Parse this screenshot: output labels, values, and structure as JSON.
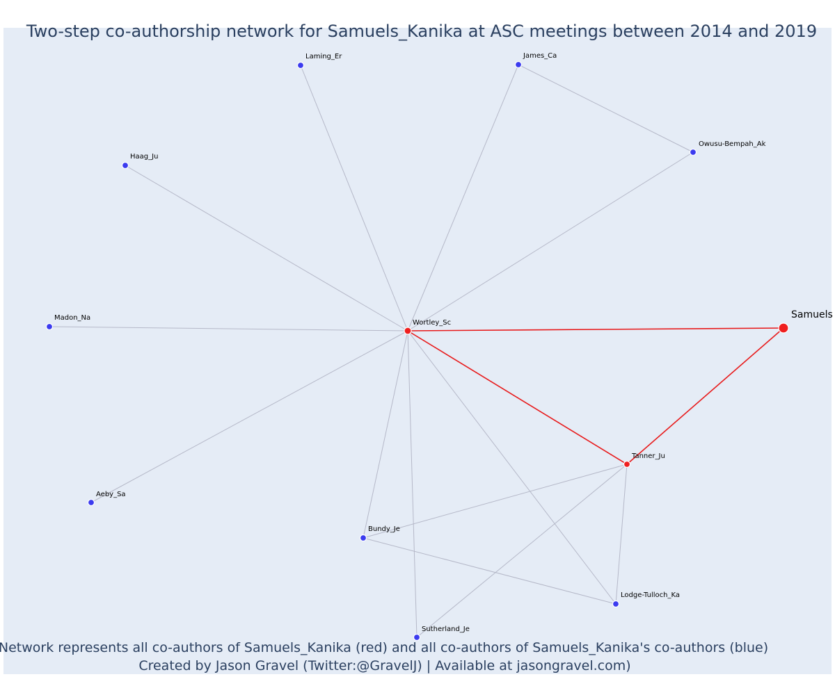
{
  "title": "Two-step co-authorship network for Samuels_Kanika at ASC meetings between 2014 and 2019",
  "caption_line1": "Network represents all co-authors of Samuels_Kanika (red) and all co-authors of Samuels_Kanika's co-authors (blue)",
  "caption_line2": "Created by Jason Gravel (Twitter:@GravelJ) | Available at jasongravel.com)",
  "colors": {
    "plot_background": "#e5ecf6",
    "direct_node": "#ef1f1f",
    "secondary_node": "#3b3bef",
    "direct_edge": "#e8191a",
    "secondary_edge": "#b5b8c8",
    "text": "#2a3f5f"
  },
  "network": {
    "nodes": [
      {
        "id": "Samuels",
        "label": "Samuels",
        "group": "focal"
      },
      {
        "id": "Wortley_Sc",
        "label": "Wortley_Sc",
        "group": "direct"
      },
      {
        "id": "Tanner_Ju",
        "label": "Tanner_Ju",
        "group": "direct"
      },
      {
        "id": "Laming_Er",
        "label": "Laming_Er",
        "group": "secondary"
      },
      {
        "id": "James_Ca",
        "label": "James_Ca",
        "group": "secondary"
      },
      {
        "id": "Owusu-Bempah_Ak",
        "label": "Owusu-Bempah_Ak",
        "group": "secondary"
      },
      {
        "id": "Haag_Ju",
        "label": "Haag_Ju",
        "group": "secondary"
      },
      {
        "id": "Madon_Na",
        "label": "Madon_Na",
        "group": "secondary"
      },
      {
        "id": "Aeby_Sa",
        "label": "Aeby_Sa",
        "group": "secondary"
      },
      {
        "id": "Bundy_Je",
        "label": "Bundy_Je",
        "group": "secondary"
      },
      {
        "id": "Lodge-Tulloch_Ka",
        "label": "Lodge-Tulloch_Ka",
        "group": "secondary"
      },
      {
        "id": "Sutherland_Je",
        "label": "Sutherland_Je",
        "group": "secondary"
      }
    ],
    "edges": [
      {
        "source": "Wortley_Sc",
        "target": "Samuels",
        "type": "direct"
      },
      {
        "source": "Wortley_Sc",
        "target": "Tanner_Ju",
        "type": "direct"
      },
      {
        "source": "Tanner_Ju",
        "target": "Samuels",
        "type": "direct"
      },
      {
        "source": "Wortley_Sc",
        "target": "Laming_Er",
        "type": "secondary"
      },
      {
        "source": "Wortley_Sc",
        "target": "James_Ca",
        "type": "secondary"
      },
      {
        "source": "Wortley_Sc",
        "target": "Owusu-Bempah_Ak",
        "type": "secondary"
      },
      {
        "source": "James_Ca",
        "target": "Owusu-Bempah_Ak",
        "type": "secondary"
      },
      {
        "source": "Wortley_Sc",
        "target": "Haag_Ju",
        "type": "secondary"
      },
      {
        "source": "Wortley_Sc",
        "target": "Madon_Na",
        "type": "secondary"
      },
      {
        "source": "Wortley_Sc",
        "target": "Aeby_Sa",
        "type": "secondary"
      },
      {
        "source": "Wortley_Sc",
        "target": "Bundy_Je",
        "type": "secondary"
      },
      {
        "source": "Wortley_Sc",
        "target": "Sutherland_Je",
        "type": "secondary"
      },
      {
        "source": "Wortley_Sc",
        "target": "Lodge-Tulloch_Ka",
        "type": "secondary"
      },
      {
        "source": "Tanner_Ju",
        "target": "Bundy_Je",
        "type": "secondary"
      },
      {
        "source": "Tanner_Ju",
        "target": "Sutherland_Je",
        "type": "secondary"
      },
      {
        "source": "Tanner_Ju",
        "target": "Lodge-Tulloch_Ka",
        "type": "secondary"
      },
      {
        "source": "Bundy_Je",
        "target": "Lodge-Tulloch_Ka",
        "type": "secondary"
      }
    ]
  }
}
